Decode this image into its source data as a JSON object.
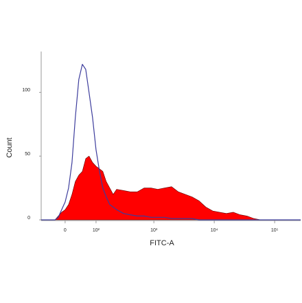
{
  "chart_data": {
    "type": "histogram-overlay",
    "xlabel": "FITC-A",
    "ylabel": "Count",
    "xscale": "biexponential",
    "x": [
      -71,
      -48,
      -27,
      -18,
      -9,
      0,
      9,
      18,
      27,
      37,
      48,
      59,
      71,
      85,
      100,
      117,
      135,
      156,
      180,
      207,
      237,
      311,
      405,
      528,
      688,
      894,
      1163,
      1510,
      1965,
      2550,
      3312,
      4304,
      5590,
      7262,
      9438,
      12260,
      15910,
      20670,
      26860,
      34880,
      45350,
      58890,
      99480,
      168000,
      269000
    ],
    "series": [
      {
        "color": "#ff0000",
        "fill": true,
        "values": [
          0,
          0,
          0,
          3,
          6,
          8,
          12,
          20,
          30,
          35,
          38,
          48,
          50,
          45,
          42,
          40,
          38,
          30,
          25,
          20,
          24,
          23,
          22,
          22,
          25,
          25,
          24,
          25,
          26,
          22,
          20,
          18,
          15,
          10,
          7,
          6,
          5,
          6,
          4,
          3,
          1,
          0,
          0,
          0,
          0
        ]
      },
      {
        "color": "#3c3c9c",
        "fill": false,
        "values": [
          0,
          0,
          0,
          2,
          8,
          14,
          25,
          45,
          80,
          110,
          122,
          118,
          100,
          80,
          55,
          38,
          25,
          18,
          12,
          10,
          8,
          5,
          4,
          3,
          3,
          2,
          2,
          2,
          1,
          1,
          1,
          1,
          0,
          0,
          0,
          0,
          0,
          0,
          0,
          0,
          0,
          0,
          0,
          0,
          0
        ]
      }
    ],
    "xlim": [
      -71,
      269000
    ],
    "xticks": [
      0,
      {
        "value": 100,
        "label": "10²"
      },
      {
        "value": 1000,
        "label": "10³"
      },
      {
        "value": 10000,
        "label": "10⁴"
      },
      {
        "value": 100000,
        "label": "10⁵"
      }
    ],
    "ylim": [
      0,
      132
    ],
    "yticks": [
      0,
      50,
      100
    ]
  }
}
